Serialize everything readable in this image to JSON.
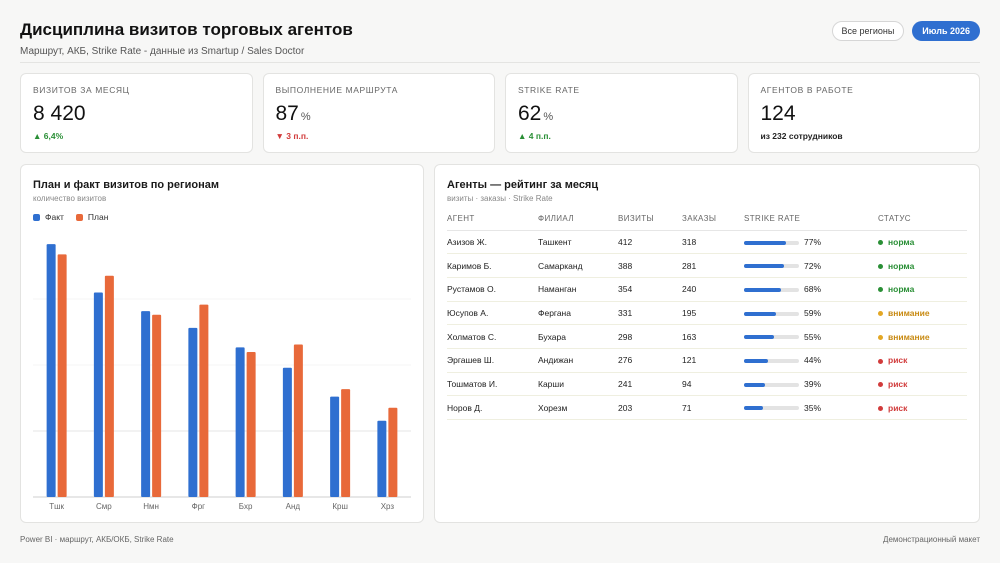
{
  "header": {
    "title": "Дисциплина визитов торговых агентов",
    "subtitle": "Маршрут, АКБ, Strike Rate - данные из Smartup / Sales Doctor",
    "region_button": "Все регионы",
    "month_button": "Июль 2026"
  },
  "kpis": [
    {
      "label": "Визитов за месяц",
      "value": "8 420",
      "unit": "",
      "delta": "▲ 6,4%",
      "delta_kind": "up"
    },
    {
      "label": "Выполнение маршрута",
      "value": "87",
      "unit": "%",
      "delta": "▼ 3 п.п.",
      "delta_kind": "down"
    },
    {
      "label": "Strike Rate",
      "value": "62",
      "unit": "%",
      "delta": "▲ 4 п.п.",
      "delta_kind": "up"
    },
    {
      "label": "Агентов в работе",
      "value": "124",
      "unit": "",
      "delta": "из 232 сотрудников",
      "delta_kind": "neutral"
    }
  ],
  "chart_panel": {
    "title": "План и факт визитов по регионам",
    "subtitle": "количество визитов"
  },
  "chart_data": {
    "type": "bar",
    "categories": [
      "Тшк",
      "Смр",
      "Нмн",
      "Фрг",
      "Бхр",
      "Анд",
      "Крш",
      "Хрз"
    ],
    "series": [
      {
        "name": "Факт",
        "color": "#2f6fd0",
        "values": [
          1360,
          1100,
          1000,
          910,
          805,
          695,
          540,
          410
        ]
      },
      {
        "name": "План",
        "color": "#e8693a",
        "values": [
          1305,
          1190,
          980,
          1035,
          780,
          820,
          580,
          480
        ]
      }
    ],
    "ylim": [
      0,
      1420
    ],
    "grid": true
  },
  "table_panel": {
    "title": "Агенты — рейтинг за месяц",
    "subtitle": "визиты · заказы · Strike Rate",
    "columns": [
      "Агент",
      "Филиал",
      "Визиты",
      "Заказы",
      "Strike Rate",
      "Статус"
    ],
    "rows": [
      {
        "agent": "Азизов Ж.",
        "branch": "Ташкент",
        "visits": "412",
        "orders": "318",
        "strike": "77%",
        "strike_frac": 0.77,
        "status": "норма",
        "kind": "ok"
      },
      {
        "agent": "Каримов Б.",
        "branch": "Самарканд",
        "visits": "388",
        "orders": "281",
        "strike": "72%",
        "strike_frac": 0.72,
        "status": "норма",
        "kind": "ok"
      },
      {
        "agent": "Рустамов О.",
        "branch": "Наманган",
        "visits": "354",
        "orders": "240",
        "strike": "68%",
        "strike_frac": 0.68,
        "status": "норма",
        "kind": "ok"
      },
      {
        "agent": "Юсупов А.",
        "branch": "Фергана",
        "visits": "331",
        "orders": "195",
        "strike": "59%",
        "strike_frac": 0.59,
        "status": "внимание",
        "kind": "warn"
      },
      {
        "agent": "Холматов С.",
        "branch": "Бухара",
        "visits": "298",
        "orders": "163",
        "strike": "55%",
        "strike_frac": 0.55,
        "status": "внимание",
        "kind": "warn"
      },
      {
        "agent": "Эргашев Ш.",
        "branch": "Андижан",
        "visits": "276",
        "orders": "121",
        "strike": "44%",
        "strike_frac": 0.44,
        "status": "риск",
        "kind": "risk"
      },
      {
        "agent": "Тошматов И.",
        "branch": "Карши",
        "visits": "241",
        "orders": "94",
        "strike": "39%",
        "strike_frac": 0.39,
        "status": "риск",
        "kind": "risk"
      },
      {
        "agent": "Норов Д.",
        "branch": "Хорезм",
        "visits": "203",
        "orders": "71",
        "strike": "35%",
        "strike_frac": 0.35,
        "status": "риск",
        "kind": "risk"
      }
    ]
  },
  "footer": {
    "left": "Power BI · маршрут, АКБ/ОКБ, Strike Rate",
    "right": "Демонстрационный макет"
  }
}
